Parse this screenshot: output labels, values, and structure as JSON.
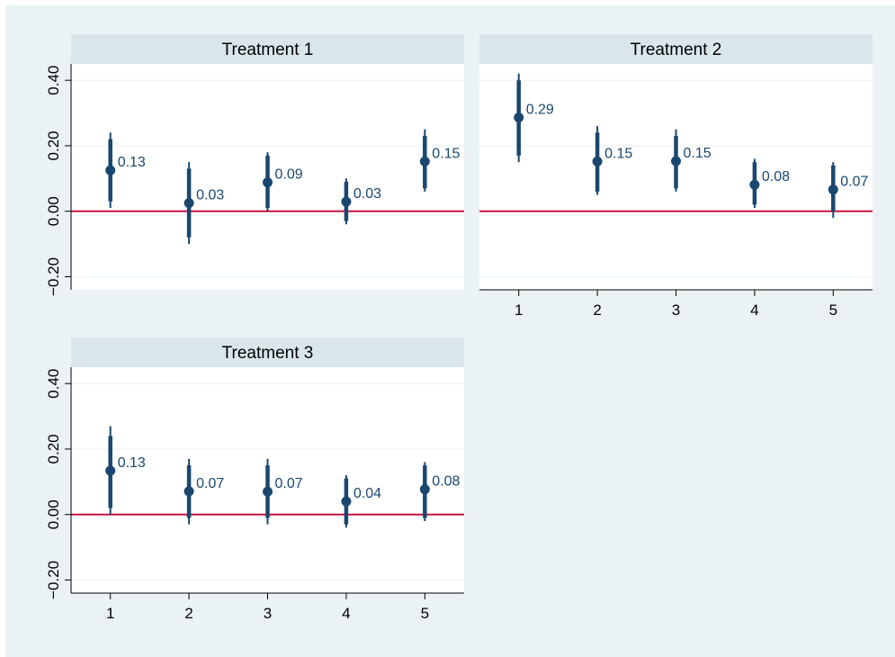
{
  "chart_data": [
    {
      "type": "scatter",
      "panel_title": "Treatment 1",
      "x": [
        1,
        2,
        3,
        4,
        5
      ],
      "y": [
        0.13,
        0.03,
        0.09,
        0.03,
        0.15
      ],
      "y_exact": [
        0.125,
        0.025,
        0.088,
        0.029,
        0.152
      ],
      "ci_outer": [
        [
          0.01,
          0.24
        ],
        [
          -0.1,
          0.15
        ],
        [
          0.0,
          0.18
        ],
        [
          -0.04,
          0.1
        ],
        [
          0.06,
          0.25
        ]
      ],
      "ci_inner": [
        [
          0.03,
          0.22
        ],
        [
          -0.08,
          0.13
        ],
        [
          0.01,
          0.17
        ],
        [
          -0.03,
          0.09
        ],
        [
          0.07,
          0.23
        ]
      ],
      "data_labels": [
        "0.13",
        "0.03",
        "0.09",
        "0.03",
        "0.15"
      ],
      "y_ticks": [
        "0.40",
        "0.20",
        "0.00",
        "−0.20"
      ],
      "y_tick_values": [
        0.4,
        0.2,
        0.0,
        -0.2
      ],
      "x_ticks": [],
      "ylim": [
        -0.24,
        0.45
      ],
      "xlim": [
        0.5,
        5.5
      ],
      "reference_line": 0,
      "grid": true
    },
    {
      "type": "scatter",
      "panel_title": "Treatment 2",
      "x": [
        1,
        2,
        3,
        4,
        5
      ],
      "y": [
        0.29,
        0.15,
        0.15,
        0.08,
        0.07
      ],
      "y_exact": [
        0.286,
        0.152,
        0.153,
        0.081,
        0.066
      ],
      "ci_outer": [
        [
          0.15,
          0.42
        ],
        [
          0.05,
          0.26
        ],
        [
          0.06,
          0.25
        ],
        [
          0.01,
          0.16
        ],
        [
          -0.02,
          0.15
        ]
      ],
      "ci_inner": [
        [
          0.17,
          0.4
        ],
        [
          0.06,
          0.24
        ],
        [
          0.07,
          0.23
        ],
        [
          0.02,
          0.15
        ],
        [
          0.0,
          0.14
        ]
      ],
      "data_labels": [
        "0.29",
        "0.15",
        "0.15",
        "0.08",
        "0.07"
      ],
      "y_ticks": [],
      "y_tick_values": [
        0.4,
        0.2,
        0.0,
        -0.2
      ],
      "x_ticks": [
        "1",
        "2",
        "3",
        "4",
        "5"
      ],
      "ylim": [
        -0.24,
        0.45
      ],
      "xlim": [
        0.5,
        5.5
      ],
      "reference_line": 0,
      "grid": true
    },
    {
      "type": "scatter",
      "panel_title": "Treatment 3",
      "x": [
        1,
        2,
        3,
        4,
        5
      ],
      "y": [
        0.13,
        0.07,
        0.07,
        0.04,
        0.08
      ],
      "y_exact": [
        0.134,
        0.071,
        0.07,
        0.04,
        0.077
      ],
      "ci_outer": [
        [
          0.0,
          0.27
        ],
        [
          -0.03,
          0.17
        ],
        [
          -0.03,
          0.17
        ],
        [
          -0.04,
          0.12
        ],
        [
          -0.02,
          0.16
        ]
      ],
      "ci_inner": [
        [
          0.02,
          0.24
        ],
        [
          -0.01,
          0.15
        ],
        [
          -0.01,
          0.15
        ],
        [
          -0.03,
          0.11
        ],
        [
          -0.01,
          0.15
        ]
      ],
      "data_labels": [
        "0.13",
        "0.07",
        "0.07",
        "0.04",
        "0.08"
      ],
      "y_ticks": [
        "0.40",
        "0.20",
        "0.00",
        "−0.20"
      ],
      "y_tick_values": [
        0.4,
        0.2,
        0.0,
        -0.2
      ],
      "x_ticks": [
        "1",
        "2",
        "3",
        "4",
        "5"
      ],
      "ylim": [
        -0.24,
        0.45
      ],
      "xlim": [
        0.5,
        5.5
      ],
      "reference_line": 0,
      "grid": true
    }
  ],
  "colors": {
    "figure_background": "#eaf2f3",
    "panel_header": "#d9e6eb",
    "plot_background": "#ffffff",
    "marker": "#1a476f",
    "reference_line": "#c10534",
    "label": "#1a476f",
    "grid": "#eaf2f3",
    "axis": "#000000"
  }
}
